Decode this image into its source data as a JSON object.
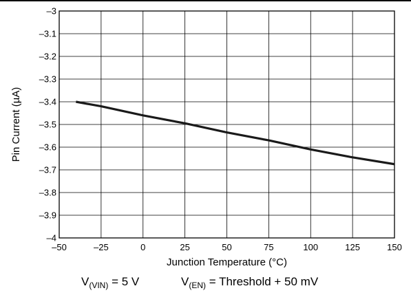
{
  "chart_data": {
    "type": "line",
    "xlabel": "Junction Temperature (°C)",
    "ylabel": "Pin Current (µA)",
    "xlim": [
      -50,
      150
    ],
    "ylim": [
      -4,
      -3
    ],
    "x_ticks": [
      "–50",
      "–25",
      "0",
      "25",
      "50",
      "75",
      "100",
      "125",
      "150"
    ],
    "y_ticks": [
      "–3",
      "–3.1",
      "–3.2",
      "–3.3",
      "–3.4",
      "–3.5",
      "–3.6",
      "–3.7",
      "–3.8",
      "–3.9",
      "–4"
    ],
    "grid": true,
    "legend": "none",
    "series": [
      {
        "x": [
          -40,
          -25,
          0,
          25,
          50,
          75,
          100,
          125,
          150
        ],
        "y": [
          -3.4,
          -3.42,
          -3.46,
          -3.495,
          -3.535,
          -3.57,
          -3.61,
          -3.645,
          -3.675
        ],
        "color": "#1a1a1a"
      }
    ]
  },
  "conditions": {
    "vin": {
      "prefix": "V",
      "sub": "(VIN)",
      "suffix": " = 5 V"
    },
    "en": {
      "prefix": "V",
      "sub": "(EN)",
      "suffix": " = Threshold + 50 mV"
    }
  }
}
